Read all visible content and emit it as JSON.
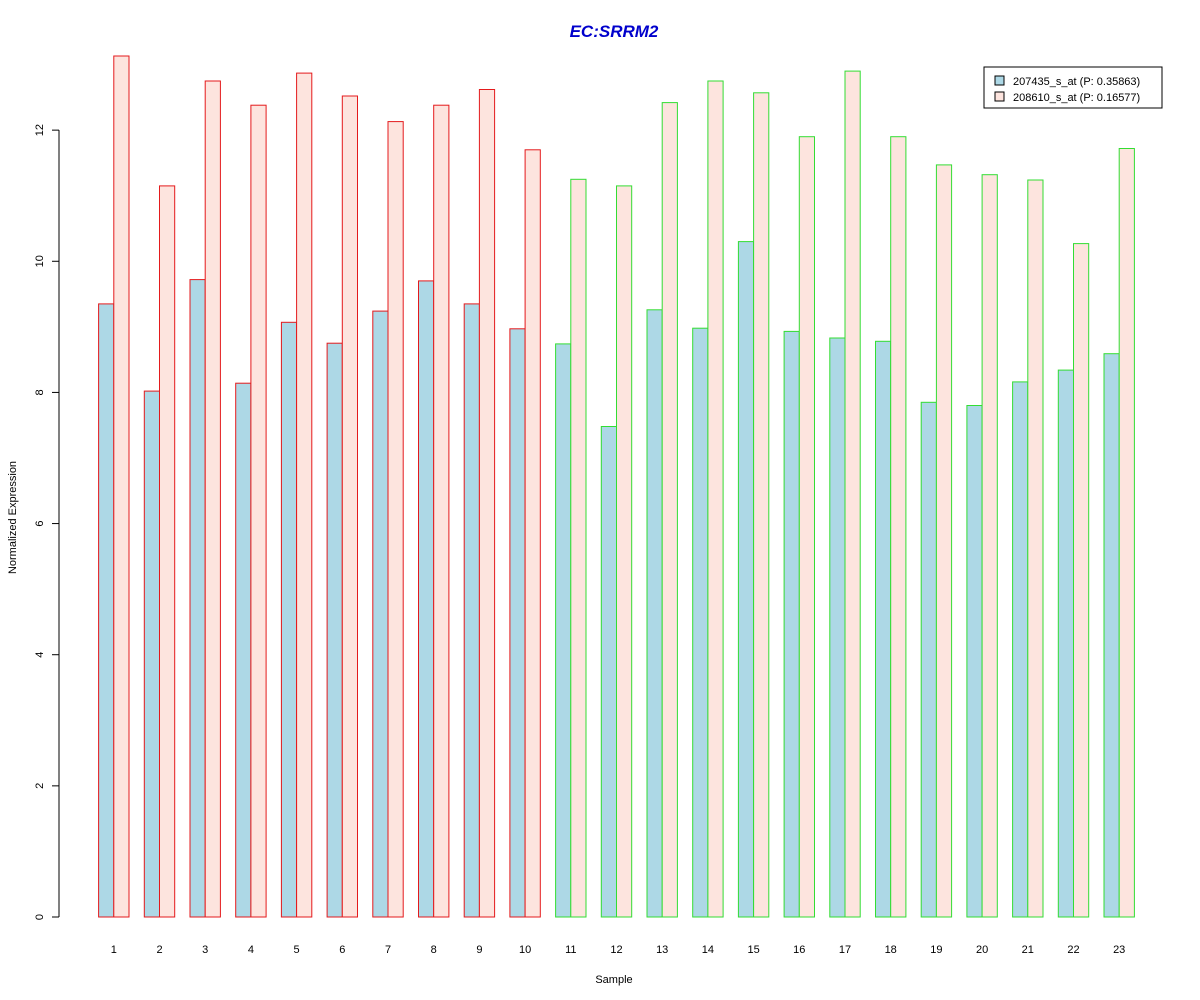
{
  "chart_data": {
    "type": "bar",
    "title": "EC:SRRM2",
    "xlabel": "Sample",
    "ylabel": "Normalized Expression",
    "ylim": [
      0,
      13.1
    ],
    "yticks": [
      0,
      2,
      4,
      6,
      8,
      10,
      12
    ],
    "grid": false,
    "legend_position": "top-right",
    "categories": [
      "1",
      "2",
      "3",
      "4",
      "5",
      "6",
      "7",
      "8",
      "9",
      "10",
      "11",
      "12",
      "13",
      "14",
      "15",
      "16",
      "17",
      "18",
      "19",
      "20",
      "21",
      "22",
      "23"
    ],
    "group_border_colors": [
      "#e41a1c",
      "#e41a1c",
      "#e41a1c",
      "#e41a1c",
      "#e41a1c",
      "#e41a1c",
      "#e41a1c",
      "#e41a1c",
      "#e41a1c",
      "#e41a1c",
      "#33dd33",
      "#33dd33",
      "#33dd33",
      "#33dd33",
      "#33dd33",
      "#33dd33",
      "#33dd33",
      "#33dd33",
      "#33dd33",
      "#33dd33",
      "#33dd33",
      "#33dd33",
      "#33dd33"
    ],
    "series": [
      {
        "name": "207435_s_at (P: 0.35863)",
        "fill": "#add8e6",
        "values": [
          9.35,
          8.02,
          9.72,
          8.14,
          9.07,
          8.75,
          9.24,
          9.7,
          9.35,
          8.97,
          8.74,
          7.48,
          9.26,
          8.98,
          10.3,
          8.93,
          8.83,
          8.78,
          7.85,
          7.8,
          8.16,
          8.34,
          8.59
        ]
      },
      {
        "name": "208610_s_at (P: 0.16577)",
        "fill": "#fde4de",
        "values": [
          13.13,
          11.15,
          12.75,
          12.38,
          12.87,
          12.52,
          12.13,
          12.38,
          12.62,
          11.7,
          11.25,
          11.15,
          12.42,
          12.75,
          12.57,
          11.9,
          12.9,
          11.9,
          11.47,
          11.32,
          11.24,
          10.27,
          11.72
        ]
      }
    ]
  },
  "colors": {
    "title": "#0000cc",
    "axis": "#000000",
    "legend_border": "#000000"
  }
}
